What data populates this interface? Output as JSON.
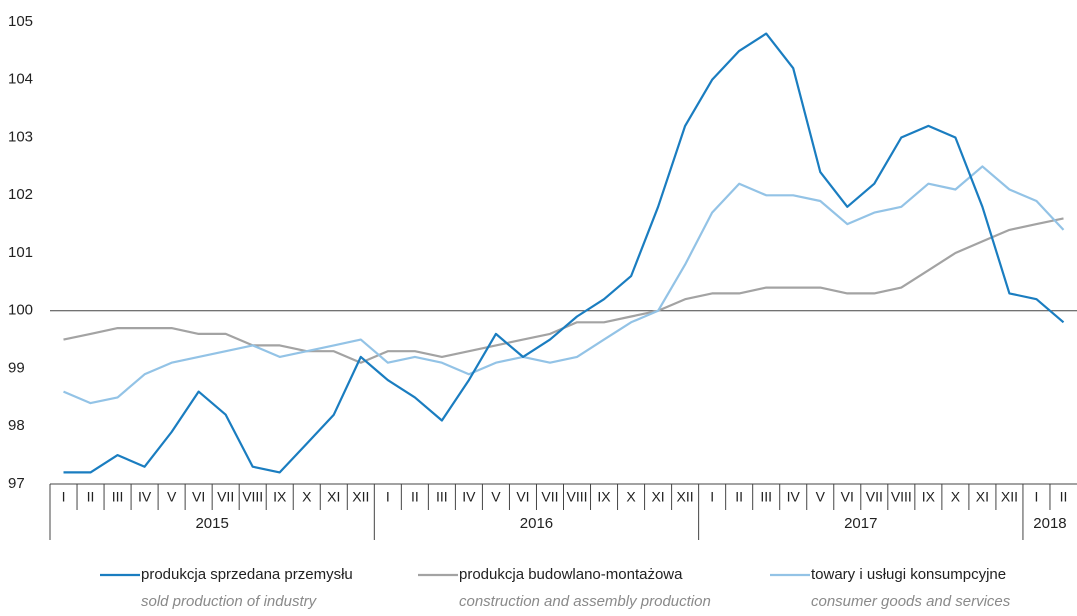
{
  "chart_data": {
    "type": "line",
    "categories": [
      "I",
      "II",
      "III",
      "IV",
      "V",
      "VI",
      "VII",
      "VIII",
      "IX",
      "X",
      "XI",
      "XII",
      "I",
      "II",
      "III",
      "IV",
      "V",
      "VI",
      "VII",
      "VIII",
      "IX",
      "X",
      "XI",
      "XII",
      "I",
      "II",
      "III",
      "IV",
      "V",
      "VI",
      "VII",
      "VIII",
      "IX",
      "X",
      "XI",
      "XII",
      "I",
      "II"
    ],
    "years": [
      "2015",
      "2016",
      "2017",
      "2018"
    ],
    "ylim": [
      97,
      105
    ],
    "yticks": [
      97,
      98,
      99,
      100,
      101,
      102,
      103,
      104,
      105
    ],
    "hline": 100,
    "series": [
      {
        "name": "produkcja sprzedana przemysłu",
        "name_en": "sold production of industry",
        "color": "#1a7dc0",
        "values": [
          97.2,
          97.2,
          97.5,
          97.3,
          97.9,
          98.6,
          98.2,
          97.3,
          97.2,
          97.7,
          98.2,
          99.2,
          98.8,
          98.5,
          98.1,
          98.8,
          99.6,
          99.2,
          99.5,
          99.9,
          100.2,
          100.6,
          101.8,
          103.2,
          104.0,
          104.5,
          104.8,
          104.2,
          102.4,
          101.8,
          102.2,
          103.0,
          103.2,
          103.0,
          101.8,
          100.3,
          100.2,
          99.8
        ]
      },
      {
        "name": "produkcja budowlano-montażowa",
        "name_en": "construction and assembly production",
        "color": "#a3a3a3",
        "values": [
          99.5,
          99.6,
          99.7,
          99.7,
          99.7,
          99.6,
          99.6,
          99.4,
          99.4,
          99.3,
          99.3,
          99.1,
          99.3,
          99.3,
          99.2,
          99.3,
          99.4,
          99.5,
          99.6,
          99.8,
          99.8,
          99.9,
          100.0,
          100.2,
          100.3,
          100.3,
          100.4,
          100.4,
          100.4,
          100.3,
          100.3,
          100.4,
          100.7,
          101.0,
          101.2,
          101.4,
          101.5,
          101.6
        ]
      },
      {
        "name": "towary i usługi konsumpcyjne",
        "name_en": "consumer goods and services",
        "color": "#93c3e6",
        "values": [
          98.6,
          98.4,
          98.5,
          98.9,
          99.1,
          99.2,
          99.3,
          99.4,
          99.2,
          99.3,
          99.4,
          99.5,
          99.1,
          99.2,
          99.1,
          98.9,
          99.1,
          99.2,
          99.1,
          99.2,
          99.5,
          99.8,
          100.0,
          100.8,
          101.7,
          102.2,
          102.0,
          102.0,
          101.9,
          101.5,
          101.7,
          101.8,
          102.2,
          102.1,
          102.5,
          102.1,
          101.9,
          101.4
        ]
      }
    ]
  }
}
